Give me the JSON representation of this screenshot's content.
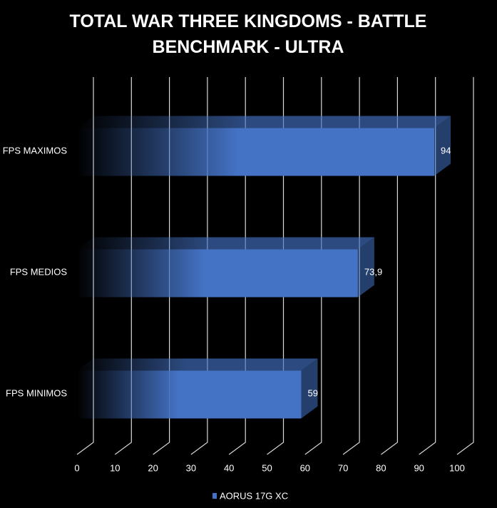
{
  "chart_data": {
    "type": "bar3d",
    "title": "TOTAL WAR THREE KINGDOMS - BATTLE BENCHMARK - ULTRA",
    "categories": [
      "FPS MAXIMOS",
      "FPS MEDIOS",
      "FPS MINIMOS"
    ],
    "series": [
      {
        "name": "AORUS 17G XC",
        "color": "#4472c4",
        "values": [
          94,
          73.9,
          59
        ],
        "value_labels": [
          "94",
          "73,9",
          "59"
        ]
      }
    ],
    "xlim": [
      0,
      100
    ],
    "xticks": [
      0,
      10,
      20,
      30,
      40,
      50,
      60,
      70,
      80,
      90,
      100
    ],
    "grid": true,
    "legend": "bottom"
  }
}
